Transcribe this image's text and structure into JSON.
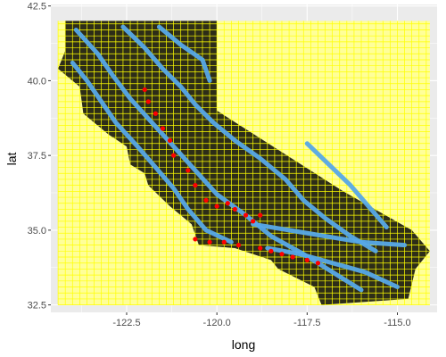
{
  "chart_data": {
    "type": "map",
    "xlabel": "long",
    "ylabel": "lat",
    "xlim": [
      -124.6,
      -113.9
    ],
    "ylim": [
      32.25,
      42.55
    ],
    "xticks": [
      {
        "value": -122.5,
        "label": "-122.5"
      },
      {
        "value": -120.0,
        "label": "-120.0"
      },
      {
        "value": -117.5,
        "label": "-117.5"
      },
      {
        "value": -115.0,
        "label": "-115.0"
      }
    ],
    "yticks": [
      {
        "value": 32.5,
        "label": "32.5"
      },
      {
        "value": 35.0,
        "label": "35.0"
      },
      {
        "value": 37.5,
        "label": "37.5"
      },
      {
        "value": 40.0,
        "label": "40.0"
      },
      {
        "value": 42.5,
        "label": "42.5"
      }
    ],
    "grid": true,
    "panel_background": "#ebebeb",
    "gridline_color": "#ffffff",
    "grid_cells": {
      "long_range": [
        -124.4,
        -114.1
      ],
      "lat_range": [
        32.5,
        42.0
      ],
      "step": 0.2,
      "fill": "#ffff99",
      "line_color": "#ffff00"
    },
    "state_polygon": {
      "fill": "#2d2d18",
      "points": [
        [
          -124.2,
          42.0
        ],
        [
          -120.0,
          42.0
        ],
        [
          -120.0,
          39.0
        ],
        [
          -116.5,
          36.3
        ],
        [
          -114.6,
          35.0
        ],
        [
          -114.1,
          34.3
        ],
        [
          -114.5,
          33.7
        ],
        [
          -114.7,
          32.7
        ],
        [
          -117.1,
          32.5
        ],
        [
          -117.3,
          33.1
        ],
        [
          -118.3,
          33.7
        ],
        [
          -118.5,
          34.0
        ],
        [
          -119.5,
          34.4
        ],
        [
          -120.5,
          34.5
        ],
        [
          -120.7,
          35.2
        ],
        [
          -121.3,
          35.8
        ],
        [
          -121.9,
          36.5
        ],
        [
          -122.0,
          36.9
        ],
        [
          -122.4,
          37.2
        ],
        [
          -122.5,
          37.8
        ],
        [
          -123.0,
          38.2
        ],
        [
          -123.7,
          38.9
        ],
        [
          -123.8,
          39.8
        ],
        [
          -124.4,
          40.4
        ],
        [
          -124.2,
          41.0
        ],
        [
          -124.2,
          42.0
        ]
      ]
    },
    "series": [
      {
        "color": "#56a8e8",
        "bands": [
          [
            [
              -123.9,
              41.7
            ],
            [
              -123.3,
              40.9
            ],
            [
              -122.9,
              40.2
            ],
            [
              -122.4,
              39.4
            ],
            [
              -121.8,
              38.6
            ],
            [
              -121.2,
              37.8
            ],
            [
              -120.6,
              37.0
            ],
            [
              -120.0,
              36.2
            ],
            [
              -119.2,
              35.5
            ],
            [
              -118.5,
              34.8
            ],
            [
              -117.6,
              34.2
            ],
            [
              -116.8,
              33.6
            ],
            [
              -116.0,
              33.0
            ]
          ],
          [
            [
              -122.6,
              41.8
            ],
            [
              -122.0,
              41.1
            ],
            [
              -121.5,
              40.4
            ],
            [
              -121.0,
              39.8
            ],
            [
              -120.6,
              39.2
            ],
            [
              -120.1,
              38.6
            ],
            [
              -119.5,
              38.0
            ],
            [
              -118.8,
              37.4
            ],
            [
              -118.1,
              36.7
            ],
            [
              -117.6,
              36.0
            ],
            [
              -117.0,
              35.4
            ],
            [
              -116.3,
              34.8
            ],
            [
              -115.6,
              34.3
            ]
          ],
          [
            [
              -121.6,
              41.8
            ],
            [
              -121.0,
              41.2
            ],
            [
              -120.4,
              40.7
            ],
            [
              -120.2,
              40.0
            ]
          ],
          [
            [
              -124.0,
              40.6
            ],
            [
              -123.6,
              40.0
            ],
            [
              -123.2,
              39.3
            ],
            [
              -122.8,
              38.6
            ],
            [
              -122.2,
              37.8
            ],
            [
              -121.7,
              37.1
            ],
            [
              -121.2,
              36.4
            ],
            [
              -120.8,
              35.7
            ],
            [
              -120.3,
              35.0
            ],
            [
              -119.6,
              34.6
            ]
          ],
          [
            [
              -118.6,
              34.4
            ],
            [
              -117.7,
              34.2
            ],
            [
              -116.8,
              33.9
            ],
            [
              -115.9,
              33.6
            ],
            [
              -115.0,
              33.1
            ]
          ],
          [
            [
              -117.5,
              37.9
            ],
            [
              -116.9,
              37.2
            ],
            [
              -116.3,
              36.5
            ],
            [
              -115.8,
              35.8
            ],
            [
              -115.3,
              35.1
            ]
          ],
          [
            [
              -119.0,
              35.2
            ],
            [
              -118.0,
              35.0
            ],
            [
              -117.0,
              34.8
            ],
            [
              -116.0,
              34.6
            ],
            [
              -114.8,
              34.5
            ]
          ]
        ]
      },
      {
        "color": "#ff0000",
        "points": [
          [
            -122.0,
            39.7
          ],
          [
            -121.9,
            39.3
          ],
          [
            -121.7,
            38.9
          ],
          [
            -121.5,
            38.4
          ],
          [
            -121.3,
            38.0
          ],
          [
            -121.2,
            37.5
          ],
          [
            -120.8,
            37.0
          ],
          [
            -120.6,
            36.5
          ],
          [
            -120.3,
            36.0
          ],
          [
            -120.0,
            35.8
          ],
          [
            -119.7,
            35.9
          ],
          [
            -119.5,
            35.7
          ],
          [
            -119.2,
            35.5
          ],
          [
            -119.0,
            35.3
          ],
          [
            -118.8,
            35.5
          ],
          [
            -120.6,
            34.7
          ],
          [
            -120.2,
            34.6
          ],
          [
            -119.8,
            34.6
          ],
          [
            -119.4,
            34.5
          ],
          [
            -118.8,
            34.4
          ],
          [
            -118.5,
            34.3
          ],
          [
            -118.2,
            34.2
          ],
          [
            -117.9,
            34.1
          ],
          [
            -117.5,
            34.0
          ],
          [
            -117.2,
            33.9
          ]
        ]
      }
    ]
  }
}
